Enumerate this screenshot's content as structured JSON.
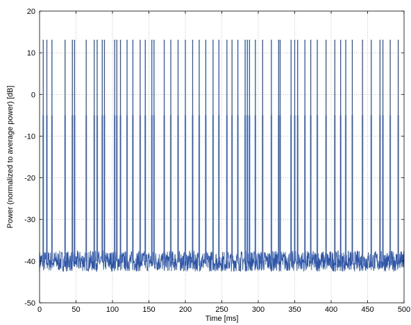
{
  "chart_data": {
    "type": "line",
    "title": "",
    "xlabel": "Time [ms]",
    "ylabel": "Power (normalized to average power) [dB]",
    "xlim": [
      0,
      500
    ],
    "ylim": [
      -50,
      20
    ],
    "xticks": [
      0,
      50,
      100,
      150,
      200,
      250,
      300,
      350,
      400,
      450,
      500
    ],
    "yticks": [
      -50,
      -40,
      -30,
      -20,
      -10,
      0,
      10,
      20
    ],
    "grid": true,
    "colors": {
      "line": "#2f56a6",
      "grid": "#999999",
      "axes": "#000000"
    },
    "noise_floor": {
      "mean": -40,
      "min": -42.5,
      "max": -37.5
    },
    "burst_peak_db": 13,
    "burst_shoulder_db": -5,
    "bursts_ms": [
      5,
      10,
      17,
      35,
      45,
      48,
      64,
      75,
      79,
      86,
      89,
      103,
      106,
      111,
      120,
      128,
      138,
      145,
      154,
      157,
      171,
      180,
      190,
      200,
      210,
      219,
      228,
      238,
      246,
      257,
      264,
      272,
      282,
      285,
      288,
      296,
      306,
      318,
      328,
      330,
      345,
      350,
      354,
      364,
      372,
      381,
      393,
      405,
      413,
      420,
      429,
      443,
      455,
      467,
      471,
      481,
      492
    ]
  }
}
